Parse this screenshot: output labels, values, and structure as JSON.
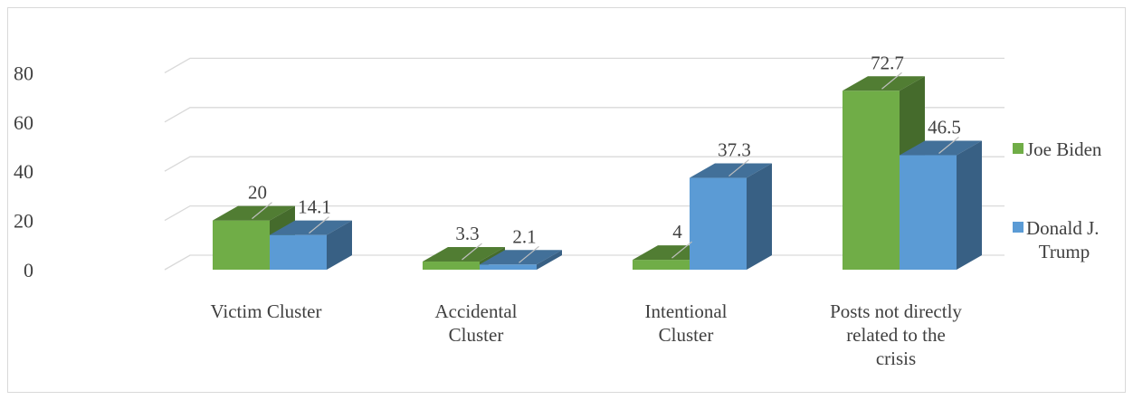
{
  "colors": {
    "joe_biden": "#70ad47",
    "donald_trump": "#5b9bd5",
    "grid": "#d9d9d9",
    "text": "#404040"
  },
  "chart_data": {
    "type": "bar",
    "style": "3d-clustered-column",
    "categories": [
      [
        "Victim Cluster"
      ],
      [
        "Accidental",
        "Cluster"
      ],
      [
        "Intentional",
        "Cluster"
      ],
      [
        "Posts not directly",
        "related to the",
        "crisis"
      ]
    ],
    "series": [
      {
        "name": "Joe Biden",
        "values": [
          20,
          3.3,
          4,
          72.7
        ],
        "labels": [
          "20",
          "3.3",
          "4",
          "72.7"
        ]
      },
      {
        "name": "Donald J. Trump",
        "legend_lines": [
          "Donald J.",
          "Trump"
        ],
        "values": [
          14.1,
          2.1,
          37.3,
          46.5
        ],
        "labels": [
          "14.1",
          "2.1",
          "37.3",
          "46.5"
        ]
      }
    ],
    "yticks": [
      "0",
      "20",
      "40",
      "60",
      "80"
    ],
    "ylim": [
      0,
      80
    ],
    "title": "",
    "xlabel": "",
    "ylabel": "",
    "grid": true,
    "legend_position": "right"
  }
}
